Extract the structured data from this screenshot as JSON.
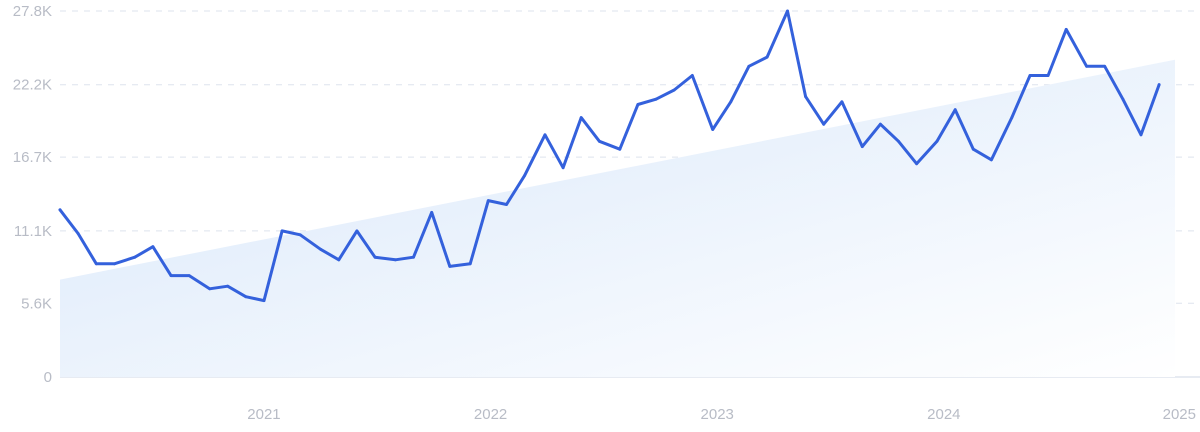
{
  "chart_data": {
    "type": "line",
    "title": "",
    "xlabel": "",
    "ylabel": "",
    "y_ticks": [
      {
        "value": 0,
        "label": "0"
      },
      {
        "value": 5600,
        "label": "5.6K"
      },
      {
        "value": 11100,
        "label": "11.1K"
      },
      {
        "value": 16700,
        "label": "16.7K"
      },
      {
        "value": 22200,
        "label": "22.2K"
      },
      {
        "value": 27800,
        "label": "27.8K"
      }
    ],
    "x_ticks": [
      {
        "value": 2021,
        "label": "2021"
      },
      {
        "value": 2022,
        "label": "2022"
      },
      {
        "value": 2023,
        "label": "2023"
      },
      {
        "value": 2024,
        "label": "2024"
      },
      {
        "value": 2025,
        "label": "2025"
      }
    ],
    "xlim": [
      2020.1,
      2025.02
    ],
    "ylim": [
      0,
      27800
    ],
    "grid": true,
    "colors": {
      "line": "#3461dc",
      "trend_fill_start": "#d8e7fa",
      "trend_fill_end": "#ffffff"
    },
    "series": [
      {
        "values": [
          {
            "x": 2020.1,
            "y": 12700
          },
          {
            "x": 2020.18,
            "y": 10900
          },
          {
            "x": 2020.26,
            "y": 8600
          },
          {
            "x": 2020.34,
            "y": 8600
          },
          {
            "x": 2020.43,
            "y": 9100
          },
          {
            "x": 2020.51,
            "y": 9900
          },
          {
            "x": 2020.59,
            "y": 7700
          },
          {
            "x": 2020.67,
            "y": 7700
          },
          {
            "x": 2020.76,
            "y": 6700
          },
          {
            "x": 2020.84,
            "y": 6900
          },
          {
            "x": 2020.92,
            "y": 6100
          },
          {
            "x": 2021.0,
            "y": 5800
          },
          {
            "x": 2021.08,
            "y": 11100
          },
          {
            "x": 2021.16,
            "y": 10800
          },
          {
            "x": 2021.25,
            "y": 9700
          },
          {
            "x": 2021.33,
            "y": 8900
          },
          {
            "x": 2021.41,
            "y": 11100
          },
          {
            "x": 2021.49,
            "y": 9100
          },
          {
            "x": 2021.58,
            "y": 8900
          },
          {
            "x": 2021.66,
            "y": 9100
          },
          {
            "x": 2021.74,
            "y": 12500
          },
          {
            "x": 2021.82,
            "y": 8400
          },
          {
            "x": 2021.91,
            "y": 8600
          },
          {
            "x": 2021.99,
            "y": 13400
          },
          {
            "x": 2022.07,
            "y": 13100
          },
          {
            "x": 2022.15,
            "y": 15300
          },
          {
            "x": 2022.24,
            "y": 18400
          },
          {
            "x": 2022.32,
            "y": 15900
          },
          {
            "x": 2022.4,
            "y": 19700
          },
          {
            "x": 2022.48,
            "y": 17900
          },
          {
            "x": 2022.57,
            "y": 17300
          },
          {
            "x": 2022.65,
            "y": 20700
          },
          {
            "x": 2022.73,
            "y": 21100
          },
          {
            "x": 2022.81,
            "y": 21800
          },
          {
            "x": 2022.89,
            "y": 22900
          },
          {
            "x": 2022.98,
            "y": 18800
          },
          {
            "x": 2023.06,
            "y": 20900
          },
          {
            "x": 2023.14,
            "y": 23600
          },
          {
            "x": 2023.22,
            "y": 24300
          },
          {
            "x": 2023.31,
            "y": 27800
          },
          {
            "x": 2023.39,
            "y": 21300
          },
          {
            "x": 2023.47,
            "y": 19200
          },
          {
            "x": 2023.55,
            "y": 20900
          },
          {
            "x": 2023.64,
            "y": 17500
          },
          {
            "x": 2023.72,
            "y": 19200
          },
          {
            "x": 2023.8,
            "y": 17900
          },
          {
            "x": 2023.88,
            "y": 16200
          },
          {
            "x": 2023.97,
            "y": 17900
          },
          {
            "x": 2024.05,
            "y": 20300
          },
          {
            "x": 2024.13,
            "y": 17300
          },
          {
            "x": 2024.21,
            "y": 16500
          },
          {
            "x": 2024.3,
            "y": 19700
          },
          {
            "x": 2024.38,
            "y": 22900
          },
          {
            "x": 2024.46,
            "y": 22900
          },
          {
            "x": 2024.54,
            "y": 26400
          },
          {
            "x": 2024.63,
            "y": 23600
          },
          {
            "x": 2024.71,
            "y": 23600
          },
          {
            "x": 2024.79,
            "y": 21100
          },
          {
            "x": 2024.87,
            "y": 18400
          },
          {
            "x": 2024.95,
            "y": 22200
          }
        ]
      }
    ],
    "trend": {
      "start": {
        "x": 2020.1,
        "y": 7400
      },
      "end": {
        "x": 2025.02,
        "y": 24100
      }
    }
  }
}
